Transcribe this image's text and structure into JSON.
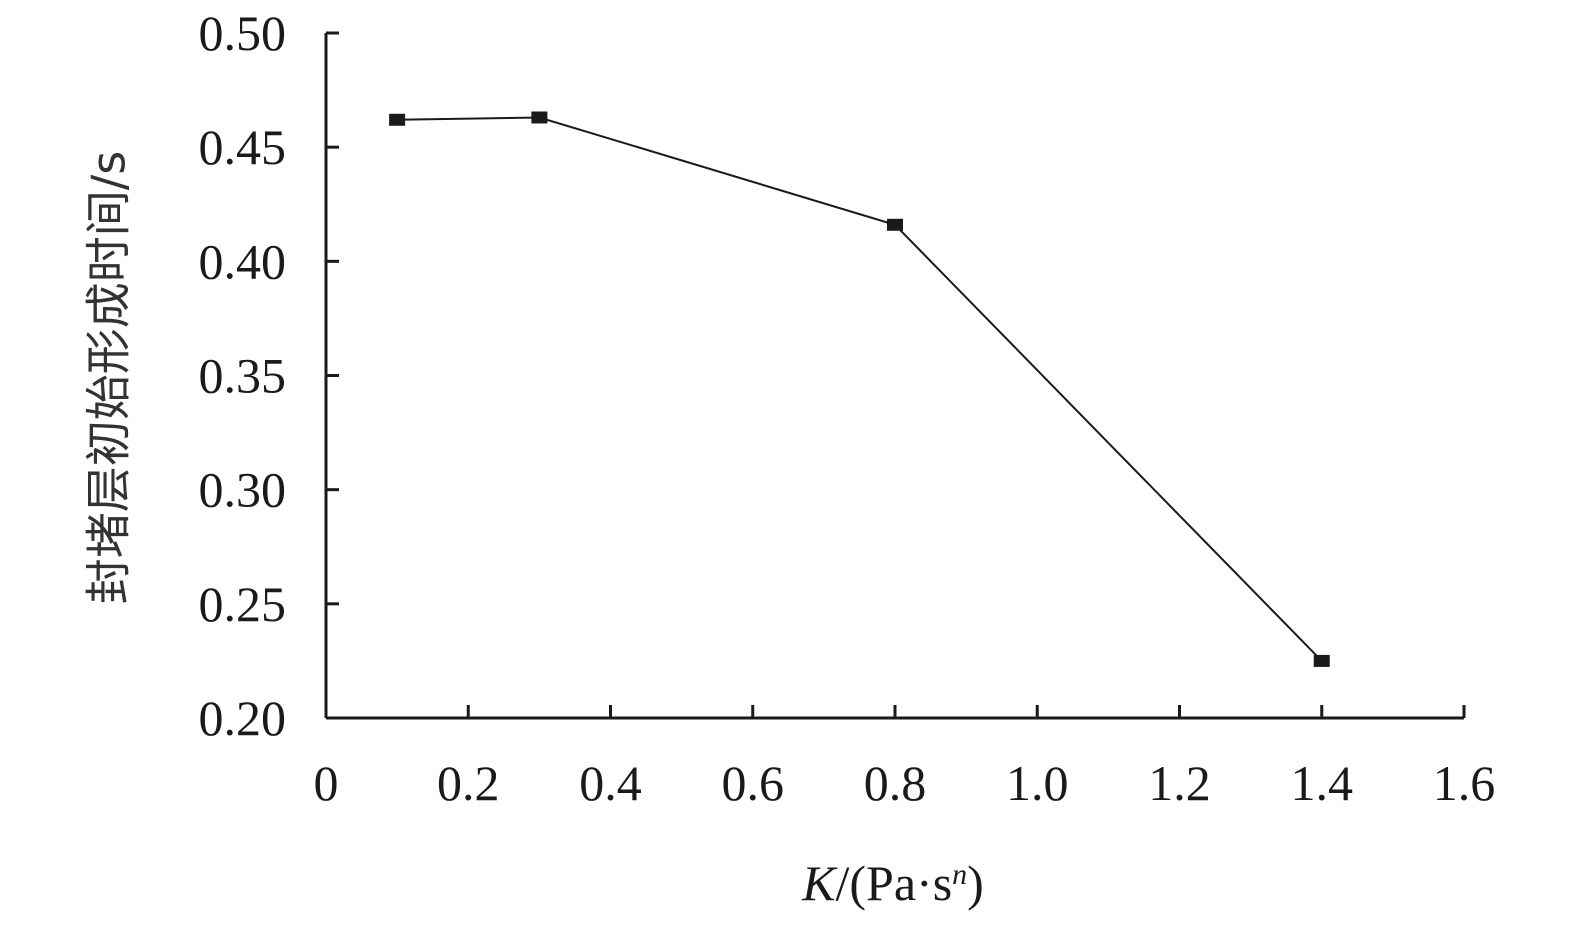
{
  "chart_data": {
    "type": "line",
    "title": "",
    "xlabel": {
      "symbol": "K",
      "prefix": "/(Pa·s",
      "superscript": "n",
      "suffix": ")"
    },
    "ylabel": "封堵层初始形成时间/s",
    "xlim": [
      0,
      1.6
    ],
    "ylim": [
      0.2,
      0.5
    ],
    "xticks": [
      0,
      0.2,
      0.4,
      0.6,
      0.8,
      1.0,
      1.2,
      1.4,
      1.6
    ],
    "xtick_labels": [
      "0",
      "0.2",
      "0.4",
      "0.6",
      "0.8",
      "1.0",
      "1.2",
      "1.4",
      "1.6"
    ],
    "yticks": [
      0.2,
      0.25,
      0.3,
      0.35,
      0.4,
      0.45,
      0.5
    ],
    "ytick_labels": [
      "0.20",
      "0.25",
      "0.30",
      "0.35",
      "0.40",
      "0.45",
      "0.50"
    ],
    "grid": false,
    "series": [
      {
        "marker": "square",
        "color": "#1a1a1a",
        "x": [
          0.1,
          0.3,
          0.8,
          1.4
        ],
        "y": [
          0.462,
          0.463,
          0.416,
          0.225
        ]
      }
    ]
  }
}
